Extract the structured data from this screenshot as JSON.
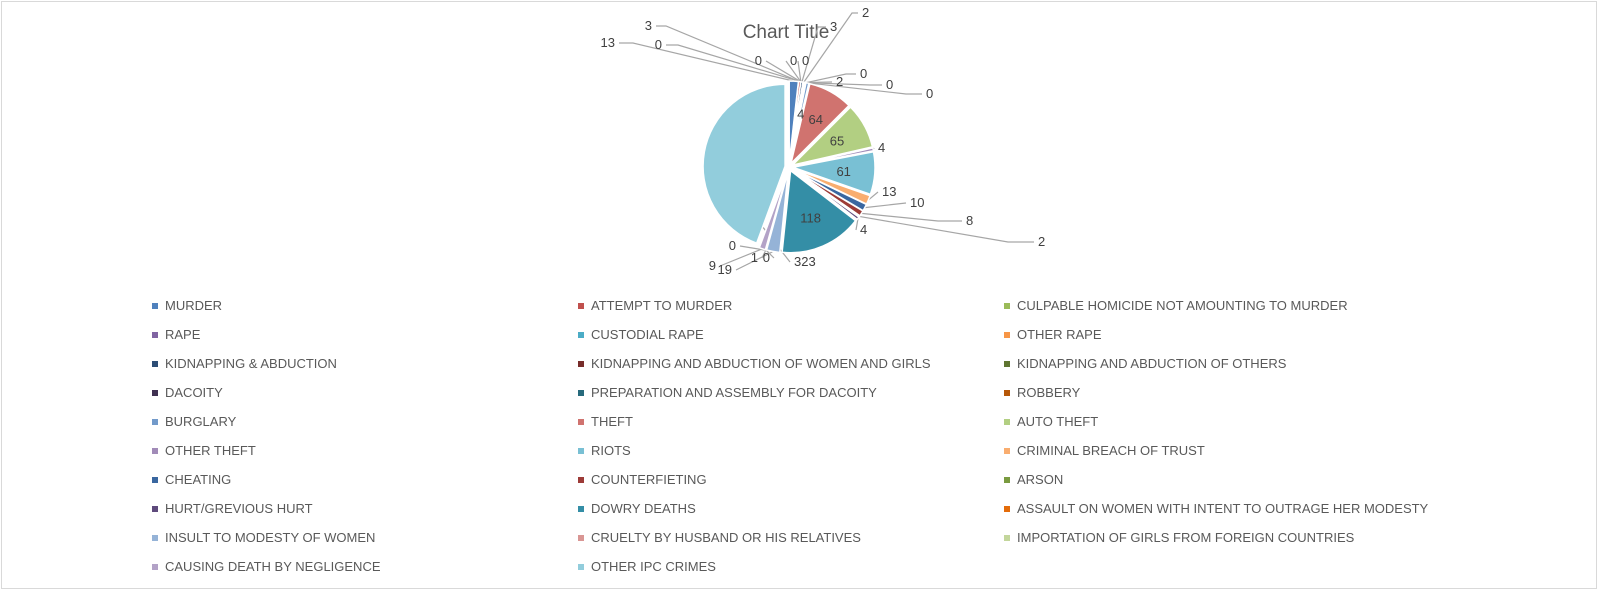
{
  "chart_data": {
    "type": "pie",
    "title": "Chart Title",
    "legend_position": "bottom",
    "slices": [
      {
        "name": "MURDER",
        "value": 13,
        "color": "#4f81bd"
      },
      {
        "name": "ATTEMPT TO MURDER",
        "value": 3,
        "color": "#c0504d"
      },
      {
        "name": "CULPABLE HOMICIDE NOT AMOUNTING TO MURDER",
        "value": 0,
        "color": "#9bbb59"
      },
      {
        "name": "RAPE",
        "value": 0,
        "color": "#8064a2"
      },
      {
        "name": "CUSTODIAL RAPE",
        "value": 0,
        "color": "#4bacc6"
      },
      {
        "name": "OTHER RAPE",
        "value": 0,
        "color": "#f79646"
      },
      {
        "name": "KIDNAPPING & ABDUCTION",
        "value": 3,
        "color": "#2c4d75"
      },
      {
        "name": "KIDNAPPING AND ABDUCTION OF WOMEN AND GIRLS",
        "value": 2,
        "color": "#772c2a"
      },
      {
        "name": "KIDNAPPING AND ABDUCTION OF OTHERS",
        "value": 2,
        "color": "#5f7530"
      },
      {
        "name": "DACOITY",
        "value": 0,
        "color": "#3f3151"
      },
      {
        "name": "PREPARATION AND ASSEMBLY FOR DACOITY",
        "value": 0,
        "color": "#276a7c"
      },
      {
        "name": "ROBBERY",
        "value": 0,
        "color": "#b65708"
      },
      {
        "name": "BURGLARY",
        "value": 4,
        "color": "#729aca"
      },
      {
        "name": "THEFT",
        "value": 64,
        "color": "#d0736f"
      },
      {
        "name": "AUTO THEFT",
        "value": 65,
        "color": "#b2cf82"
      },
      {
        "name": "OTHER THEFT",
        "value": 4,
        "color": "#a18bb8"
      },
      {
        "name": "RIOTS",
        "value": 61,
        "color": "#79c0d4"
      },
      {
        "name": "CRIMINAL BREACH OF TRUST",
        "value": 13,
        "color": "#f9ad6f"
      },
      {
        "name": "CHEATING",
        "value": 10,
        "color": "#3a67a0"
      },
      {
        "name": "COUNTERFIETING",
        "value": 8,
        "color": "#9d3b37"
      },
      {
        "name": "ARSON",
        "value": 2,
        "color": "#7a9b3f"
      },
      {
        "name": "HURT/GREVIOUS HURT",
        "value": 4,
        "color": "#5e4a7c"
      },
      {
        "name": "DOWRY DEATHS",
        "value": 118,
        "color": "#348ea6"
      },
      {
        "name": "ASSAULT ON WOMEN WITH INTENT TO OUTRAGE HER MODESTY",
        "value": 0,
        "color": "#e46c0a"
      },
      {
        "name": "INSULT TO MODESTY OF WOMEN",
        "value": 19,
        "color": "#95b3d7"
      },
      {
        "name": "CRUELTY BY HUSBAND OR HIS RELATIVES",
        "value": 1,
        "color": "#d99694"
      },
      {
        "name": "IMPORTATION OF GIRLS FROM FOREIGN COUNTRIES",
        "value": 0,
        "color": "#c3d69b"
      },
      {
        "name": "CAUSING DEATH BY NEGLIGENCE",
        "value": 9,
        "color": "#b3a2c7"
      },
      {
        "name": "OTHER IPC CRIMES",
        "value": 323,
        "color": "#92cddc"
      }
    ]
  }
}
